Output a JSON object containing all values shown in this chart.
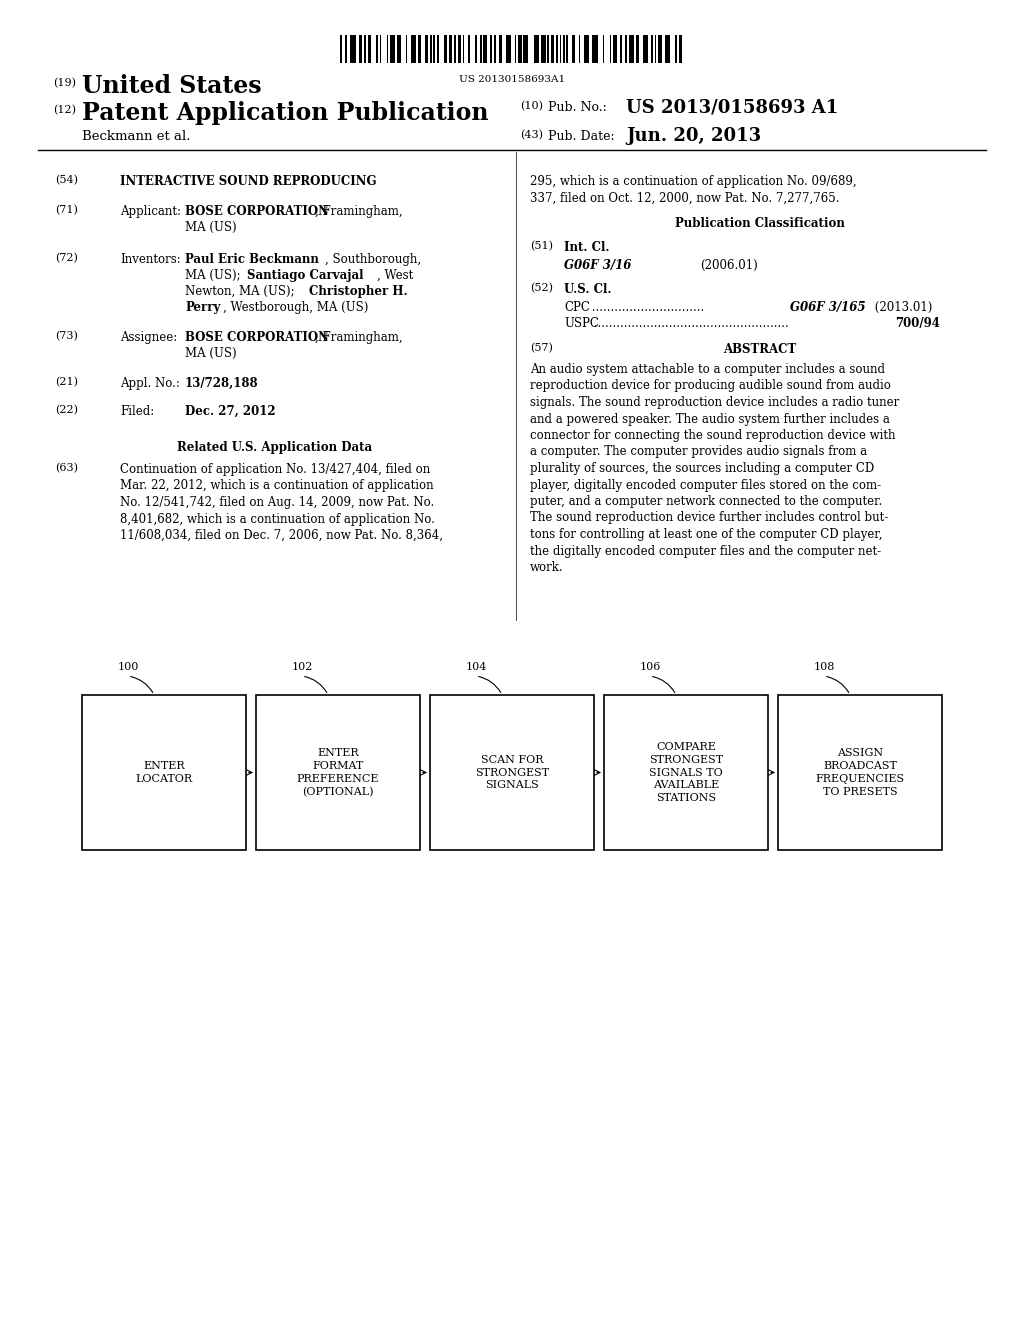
{
  "background_color": "#ffffff",
  "barcode_text": "US 20130158693A1",
  "patent_number": "US 2013/0158693 A1",
  "pub_date": "Jun. 20, 2013",
  "country": "United States",
  "kind": "Patent Application Publication",
  "inventors_line": "Beckmann et al.",
  "diagram_boxes": [
    {
      "id": "100",
      "label": "ENTER\nLOCATOR"
    },
    {
      "id": "102",
      "label": "ENTER\nFORMAT\nPREFERENCE\n(OPTIONAL)"
    },
    {
      "id": "104",
      "label": "SCAN FOR\nSTRONGEST\nSIGNALS"
    },
    {
      "id": "106",
      "label": "COMPARE\nSTRONGEST\nSIGNALS TO\nAVAILABLE\nSTATIONS"
    },
    {
      "id": "108",
      "label": "ASSIGN\nBROADCAST\nFREQUENCIES\nTO PRESETS"
    }
  ],
  "text_color": "#000000"
}
